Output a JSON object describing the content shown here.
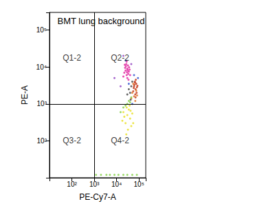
{
  "chart_data": {
    "type": "scatter",
    "title": "BMT lung background",
    "x_label": "PE-Cy7-A",
    "y_label": "PE-A",
    "log": true,
    "grid": false,
    "marker": "circle",
    "xlim": [
      10,
      200000
    ],
    "ylim": [
      10,
      300000
    ],
    "xticks": [
      {
        "value": 100,
        "label": "10²"
      },
      {
        "value": 1000,
        "label": "10³"
      },
      {
        "value": 10000,
        "label": "10⁴"
      },
      {
        "value": 100000,
        "label": "10⁵"
      }
    ],
    "yticks": [
      {
        "value": 100,
        "label": "10²"
      },
      {
        "value": 1000,
        "label": "10³"
      },
      {
        "value": 10000,
        "label": "10⁴"
      },
      {
        "value": 100000,
        "label": "10⁵"
      }
    ],
    "gates": {
      "x": 1000,
      "y": 1000
    },
    "quadrant_labels": [
      "Q1-2",
      "Q2-2",
      "Q3-2",
      "Q4-2"
    ],
    "series": [
      {
        "color": "#e0209e",
        "values": [
          [
            25000,
            8000
          ],
          [
            30000,
            9000
          ],
          [
            28000,
            6000
          ],
          [
            35000,
            7500
          ],
          [
            32000,
            11000
          ],
          [
            22000,
            7000
          ],
          [
            27000,
            12000
          ],
          [
            38000,
            8500
          ],
          [
            30000,
            5000
          ],
          [
            24000,
            9500
          ],
          [
            33000,
            6500
          ],
          [
            29000,
            7200
          ],
          [
            26000,
            10500
          ],
          [
            36000,
            9800
          ],
          [
            31000,
            8200
          ],
          [
            20000,
            5500
          ],
          [
            40000,
            6000
          ],
          [
            28000,
            14000
          ],
          [
            34000,
            4500
          ],
          [
            23000,
            11500
          ]
        ]
      },
      {
        "color": "#c0300f",
        "values": [
          [
            60000,
            3000
          ],
          [
            70000,
            2500
          ],
          [
            65000,
            4000
          ],
          [
            75000,
            3500
          ],
          [
            55000,
            2200
          ],
          [
            80000,
            2800
          ],
          [
            68000,
            1800
          ],
          [
            62000,
            3300
          ],
          [
            72000,
            4500
          ],
          [
            58000,
            2700
          ],
          [
            78000,
            2000
          ],
          [
            66000,
            3800
          ],
          [
            85000,
            3100
          ],
          [
            70000,
            1500
          ]
        ]
      },
      {
        "color": "#e07020",
        "values": [
          [
            50000,
            2000
          ],
          [
            60000,
            1600
          ],
          [
            75000,
            2300
          ],
          [
            55000,
            3500
          ],
          [
            68000,
            1200
          ],
          [
            82000,
            1700
          ],
          [
            45000,
            1400
          ]
        ]
      },
      {
        "color": "#404040",
        "values": [
          [
            40000,
            2000
          ],
          [
            45000,
            3000
          ],
          [
            35000,
            2500
          ],
          [
            50000,
            4000
          ],
          [
            30000,
            1800
          ],
          [
            42000,
            1300
          ]
        ]
      },
      {
        "color": "#e8e020",
        "values": [
          [
            30000,
            500
          ],
          [
            25000,
            300
          ],
          [
            35000,
            700
          ],
          [
            40000,
            400
          ],
          [
            20000,
            600
          ],
          [
            45000,
            250
          ],
          [
            28000,
            800
          ],
          [
            32000,
            200
          ],
          [
            38000,
            900
          ],
          [
            22000,
            450
          ],
          [
            50000,
            550
          ],
          [
            27000,
            150
          ],
          [
            42000,
            650
          ],
          [
            18000,
            350
          ],
          [
            55000,
            300
          ]
        ]
      },
      {
        "color": "#80d040",
        "values": [
          [
            30000,
            1000
          ],
          [
            35000,
            1200
          ],
          [
            25000,
            900
          ],
          [
            40000,
            1100
          ],
          [
            20000,
            800
          ],
          [
            45000,
            1500
          ],
          [
            15000,
            600
          ],
          [
            1200,
            12
          ],
          [
            2000,
            12
          ],
          [
            3500,
            12
          ],
          [
            5000,
            12
          ],
          [
            8000,
            12
          ],
          [
            12000,
            12
          ],
          [
            20000,
            12
          ],
          [
            30000,
            12
          ],
          [
            50000,
            12
          ],
          [
            80000,
            12
          ]
        ]
      },
      {
        "color": "#3050d0",
        "values": [
          [
            60000,
            6000
          ],
          [
            50000,
            1000
          ],
          [
            35000,
            3500
          ],
          [
            90000,
            5000
          ],
          [
            25000,
            15000
          ]
        ]
      },
      {
        "color": "#9040c0",
        "values": [
          [
            20000,
            20000
          ],
          [
            45000,
            12000
          ],
          [
            15000,
            3000
          ],
          [
            8000,
            5000
          ]
        ]
      }
    ]
  }
}
